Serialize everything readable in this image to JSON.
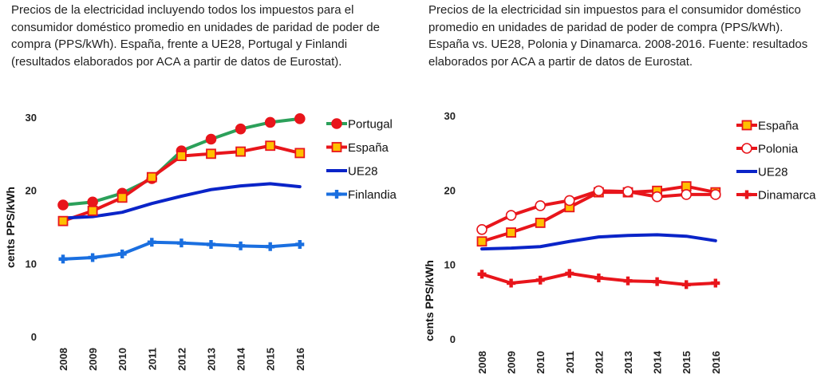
{
  "chart_data": [
    {
      "type": "line",
      "caption": "Precios de la electricidad incluyendo todos los impuestos para el consumidor doméstico promedio en unidades de paridad de poder de compra (PPS/kWh). España, frente a UE28, Portugal y Finlandi (resultados elaborados por ACA a partir de datos de Eurostat).",
      "ylabel": "cents PPS/kWh",
      "ylim": [
        0,
        30
      ],
      "yticks": [
        "0",
        "10",
        "20",
        "30"
      ],
      "categories": [
        "2008",
        "2009",
        "2010",
        "2011",
        "2012",
        "2013",
        "2014",
        "2015",
        "2016"
      ],
      "legend_position": "right",
      "grid": false,
      "series": [
        {
          "name": "Portugal",
          "color": "#2ca05a",
          "marker": "circle",
          "marker_fill": "#e8151b",
          "marker_stroke": "#e8151b",
          "values": [
            18.0,
            18.4,
            19.6,
            21.6,
            25.4,
            27.0,
            28.4,
            29.3,
            29.8
          ]
        },
        {
          "name": "España",
          "color": "#e8151b",
          "marker": "square",
          "marker_fill": "#ffc000",
          "marker_stroke": "#e8151b",
          "values": [
            15.8,
            17.2,
            19.0,
            21.8,
            24.7,
            25.0,
            25.3,
            26.1,
            25.1
          ]
        },
        {
          "name": "UE28",
          "color": "#0a24c8",
          "marker": "none",
          "values": [
            16.2,
            16.4,
            17.0,
            18.2,
            19.2,
            20.1,
            20.6,
            20.9,
            20.5
          ]
        },
        {
          "name": "Finlandia",
          "color": "#1a6fe0",
          "marker": "plus",
          "marker_fill": "#1a6fe0",
          "marker_stroke": "#1a6fe0",
          "values": [
            10.6,
            10.8,
            11.3,
            12.9,
            12.8,
            12.6,
            12.4,
            12.3,
            12.6
          ]
        }
      ]
    },
    {
      "type": "line",
      "caption": "Precios de la electricidad sin impuestos para el consumidor doméstico promedio en unidades de paridad de poder de compra (PPS/kWh). España vs. UE28, Polonia y Dinamarca. 2008-2016. Fuente: resultados elaborados por ACA a partir de datos de Eurostat.",
      "ylabel": "cents PPS/kWh",
      "ylim": [
        0,
        30
      ],
      "yticks": [
        "0",
        "10",
        "20",
        "30"
      ],
      "categories": [
        "2008",
        "2009",
        "2010",
        "2011",
        "2012",
        "2013",
        "2014",
        "2015",
        "2016"
      ],
      "legend_position": "right",
      "grid": false,
      "series": [
        {
          "name": "España",
          "color": "#e8151b",
          "marker": "square",
          "marker_fill": "#ffc000",
          "marker_stroke": "#e8151b",
          "values": [
            13.1,
            14.3,
            15.6,
            17.7,
            19.7,
            19.7,
            19.9,
            20.5,
            19.7
          ]
        },
        {
          "name": "Polonia",
          "color": "#e8151b",
          "marker": "circle",
          "marker_fill": "#ffffff",
          "marker_stroke": "#e8151b",
          "values": [
            14.7,
            16.6,
            17.9,
            18.6,
            19.9,
            19.8,
            19.1,
            19.4,
            19.4
          ]
        },
        {
          "name": "UE28",
          "color": "#0a24c8",
          "marker": "none",
          "values": [
            12.1,
            12.2,
            12.4,
            13.1,
            13.7,
            13.9,
            14.0,
            13.8,
            13.2
          ]
        },
        {
          "name": "Dinamarca",
          "color": "#e8151b",
          "marker": "plus",
          "marker_fill": "#e8151b",
          "marker_stroke": "#e8151b",
          "values": [
            8.7,
            7.5,
            7.9,
            8.8,
            8.2,
            7.8,
            7.7,
            7.3,
            7.5
          ]
        }
      ]
    }
  ]
}
